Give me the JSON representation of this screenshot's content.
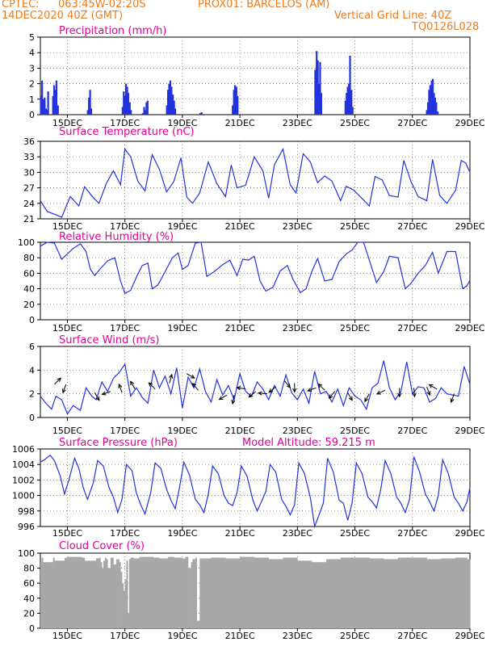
{
  "header": {
    "source": "CPTEC:",
    "coords": "063:45W-02:20S",
    "station": "PROX01: BARCELOS (AM)",
    "date": "14DEC2020 40Z (GMT)",
    "grid_note": "Vertical Grid Line: 40Z",
    "run_id": "TQ0126L028",
    "model_altitude": "Model Altitude: 59.215 m"
  },
  "colors": {
    "header": "#ee7a1c",
    "title": "#e00097",
    "line": "#2233dd",
    "cloud": "#a8a8a8"
  },
  "x_ticks": [
    "15DEC",
    "17DEC",
    "19DEC",
    "21DEC",
    "23DEC",
    "25DEC",
    "27DEC",
    "29DEC"
  ],
  "x_tick_days": [
    15,
    17,
    19,
    21,
    23,
    25,
    27,
    29
  ],
  "x_range": [
    14.06,
    29.0
  ],
  "chart_data": [
    {
      "id": "precip",
      "type": "bar",
      "title": "Precipitation (mm/h)",
      "ylim": [
        0,
        5
      ],
      "yticks": [
        0,
        1,
        2,
        3,
        4,
        5
      ],
      "x": [
        14.08,
        14.12,
        14.17,
        14.21,
        14.25,
        14.29,
        14.33,
        14.5,
        14.54,
        14.58,
        14.62,
        14.67,
        15.71,
        15.75,
        15.79,
        15.83,
        16.92,
        16.96,
        17,
        17.04,
        17.08,
        17.12,
        17.17,
        17.21,
        17.62,
        17.67,
        17.71,
        17.75,
        17.79,
        18.46,
        18.5,
        18.54,
        18.58,
        18.62,
        18.67,
        18.71,
        18.75,
        19.62,
        19.67,
        20.75,
        20.79,
        20.83,
        20.88,
        20.92,
        23.62,
        23.67,
        23.71,
        23.75,
        23.79,
        23.83,
        24.67,
        24.71,
        24.75,
        24.79,
        24.83,
        24.88,
        24.92,
        27.5,
        27.54,
        27.58,
        27.62,
        27.67,
        27.71,
        27.75,
        27.79,
        27.83,
        27.88
      ],
      "values": [
        1.2,
        2.2,
        1.0,
        1.1,
        0.4,
        0.3,
        1.5,
        1.2,
        1.9,
        1.6,
        2.2,
        0.6,
        0.3,
        1.1,
        1.6,
        0.4,
        0.5,
        1.5,
        1.2,
        2.0,
        1.8,
        1.4,
        0.8,
        0.3,
        0.1,
        0.5,
        0.3,
        0.8,
        0.9,
        0.6,
        1.6,
        2.0,
        2.2,
        1.8,
        1.3,
        0.9,
        0.4,
        0.1,
        0.15,
        0.6,
        1.6,
        1.9,
        1.8,
        1.2,
        2.9,
        4.1,
        3.5,
        2.0,
        3.4,
        1.4,
        0.9,
        1.4,
        1.8,
        2.0,
        3.8,
        1.6,
        0.5,
        0.3,
        0.8,
        1.6,
        1.9,
        2.2,
        2.3,
        1.4,
        1.1,
        0.8,
        0.2
      ]
    },
    {
      "id": "temp",
      "type": "line",
      "title": "Surface Temperature (nC)",
      "ylim": [
        21,
        36
      ],
      "yticks": [
        21,
        24,
        27,
        30,
        33,
        36
      ],
      "x": [
        14.06,
        14.3,
        14.6,
        14.8,
        15.1,
        15.4,
        15.6,
        15.9,
        16.1,
        16.35,
        16.6,
        16.85,
        17.0,
        17.2,
        17.45,
        17.7,
        17.95,
        18.2,
        18.45,
        18.7,
        18.95,
        19.15,
        19.35,
        19.6,
        19.9,
        20.2,
        20.5,
        20.7,
        20.9,
        21.2,
        21.5,
        21.8,
        22.0,
        22.2,
        22.5,
        22.75,
        22.95,
        23.2,
        23.45,
        23.7,
        23.95,
        24.2,
        24.5,
        24.7,
        24.95,
        25.2,
        25.5,
        25.7,
        25.95,
        26.2,
        26.5,
        26.7,
        26.95,
        27.2,
        27.5,
        27.7,
        27.95,
        28.2,
        28.5,
        28.7,
        28.85,
        29.0
      ],
      "values": [
        24.5,
        22.4,
        21.8,
        21.3,
        25.3,
        23.5,
        27.2,
        25.1,
        24.0,
        27.8,
        30.3,
        27.6,
        34.5,
        33.0,
        28.3,
        26.4,
        33.4,
        30.6,
        26.2,
        28.2,
        32.8,
        25.2,
        24.0,
        26.0,
        32.0,
        27.8,
        25.3,
        31.4,
        27.0,
        27.5,
        33.0,
        30.3,
        25.0,
        31.5,
        34.5,
        27.6,
        26.0,
        33.6,
        32.0,
        28.0,
        29.3,
        28.3,
        24.5,
        27.3,
        26.6,
        25.2,
        23.5,
        29.2,
        28.5,
        25.5,
        25.2,
        32.3,
        28.2,
        25.3,
        24.5,
        32.5,
        25.5,
        24.0,
        26.5,
        32.3,
        31.8,
        30.0
      ]
    },
    {
      "id": "rh",
      "type": "line",
      "title": "Relative Humidity (%)",
      "ylim": [
        0,
        100
      ],
      "yticks": [
        0,
        20,
        40,
        60,
        80,
        100
      ],
      "x": [
        14.06,
        14.3,
        14.55,
        14.8,
        15.0,
        15.2,
        15.45,
        15.65,
        15.8,
        15.95,
        16.15,
        16.4,
        16.65,
        16.85,
        17.0,
        17.2,
        17.4,
        17.6,
        17.8,
        17.95,
        18.15,
        18.4,
        18.65,
        18.85,
        19.0,
        19.2,
        19.45,
        19.65,
        19.85,
        20.1,
        20.4,
        20.65,
        20.9,
        21.1,
        21.3,
        21.5,
        21.7,
        21.9,
        22.15,
        22.4,
        22.65,
        22.85,
        23.1,
        23.3,
        23.5,
        23.7,
        23.95,
        24.2,
        24.45,
        24.7,
        24.9,
        25.1,
        25.3,
        25.5,
        25.75,
        26.0,
        26.2,
        26.5,
        26.75,
        26.95,
        27.2,
        27.45,
        27.7,
        27.9,
        28.2,
        28.5,
        28.75,
        28.9,
        29.0
      ],
      "values": [
        95,
        100,
        99,
        78,
        85,
        92,
        98,
        88,
        65,
        57,
        66,
        76,
        80,
        50,
        34,
        38,
        55,
        70,
        73,
        40,
        45,
        62,
        80,
        86,
        65,
        70,
        99,
        100,
        56,
        62,
        71,
        77,
        57,
        78,
        77,
        82,
        50,
        37,
        42,
        63,
        70,
        52,
        35,
        40,
        62,
        79,
        50,
        52,
        75,
        85,
        90,
        100,
        100,
        77,
        48,
        62,
        82,
        80,
        40,
        47,
        60,
        70,
        87,
        60,
        88,
        88,
        40,
        44,
        51
      ]
    },
    {
      "id": "wind",
      "type": "line",
      "title": "Surface Wind (m/s)",
      "ylim": [
        0,
        6
      ],
      "yticks": [
        0,
        2,
        4,
        6
      ],
      "x": [
        14.06,
        14.25,
        14.45,
        14.6,
        14.8,
        15.0,
        15.2,
        15.45,
        15.65,
        15.85,
        16.0,
        16.2,
        16.4,
        16.6,
        16.8,
        17.0,
        17.2,
        17.4,
        17.6,
        17.8,
        18.0,
        18.2,
        18.4,
        18.6,
        18.8,
        19.0,
        19.2,
        19.4,
        19.6,
        19.8,
        20.0,
        20.2,
        20.4,
        20.6,
        20.8,
        21.0,
        21.2,
        21.4,
        21.6,
        21.8,
        22.0,
        22.2,
        22.4,
        22.6,
        22.8,
        23.0,
        23.2,
        23.4,
        23.6,
        23.8,
        24.0,
        24.2,
        24.4,
        24.6,
        24.8,
        25.0,
        25.2,
        25.4,
        25.6,
        25.8,
        26.0,
        26.2,
        26.4,
        26.6,
        26.8,
        27.0,
        27.2,
        27.4,
        27.6,
        27.8,
        28.0,
        28.2,
        28.4,
        28.6,
        28.8,
        29.0
      ],
      "values": [
        1.8,
        1.2,
        0.7,
        1.8,
        1.5,
        0.3,
        1.0,
        0.6,
        2.5,
        1.8,
        1.5,
        3.0,
        2.2,
        3.3,
        3.8,
        4.5,
        1.8,
        2.5,
        1.7,
        1.2,
        4.0,
        2.5,
        3.5,
        2.0,
        4.2,
        0.8,
        3.4,
        2.5,
        4.1,
        2.2,
        1.3,
        3.2,
        1.9,
        2.7,
        1.5,
        3.7,
        2.2,
        1.8,
        3.0,
        2.4,
        1.5,
        2.7,
        1.8,
        3.6,
        2.1,
        1.5,
        2.4,
        1.2,
        3.9,
        2.0,
        2.2,
        1.3,
        2.4,
        1.0,
        2.5,
        1.8,
        1.5,
        0.7,
        2.5,
        2.9,
        4.8,
        2.5,
        1.5,
        2.2,
        4.7,
        2.0,
        2.6,
        2.5,
        1.3,
        1.6,
        2.5,
        2.0,
        1.9,
        1.8,
        4.3,
        2.8
      ],
      "arrows": [
        {
          "x": 14.55,
          "y": 2.8,
          "dir": 45
        },
        {
          "x": 14.95,
          "y": 2.8,
          "dir": 250
        },
        {
          "x": 15.95,
          "y": 2.1,
          "dir": 300
        },
        {
          "x": 16.5,
          "y": 2.2,
          "dir": 200
        },
        {
          "x": 16.9,
          "y": 2.1,
          "dir": 110
        },
        {
          "x": 17.35,
          "y": 2.4,
          "dir": 120
        },
        {
          "x": 18.05,
          "y": 2.4,
          "dir": 135
        },
        {
          "x": 18.55,
          "y": 2.9,
          "dir": 75
        },
        {
          "x": 19.15,
          "y": 3.7,
          "dir": 330
        },
        {
          "x": 19.55,
          "y": 2.3,
          "dir": 130
        },
        {
          "x": 20.55,
          "y": 1.9,
          "dir": 210
        },
        {
          "x": 20.8,
          "y": 1.9,
          "dir": 260
        },
        {
          "x": 21.2,
          "y": 2.4,
          "dir": 170
        },
        {
          "x": 21.55,
          "y": 2.2,
          "dir": 220
        },
        {
          "x": 21.95,
          "y": 2.0,
          "dir": 175
        },
        {
          "x": 22.25,
          "y": 2.6,
          "dir": 220
        },
        {
          "x": 22.55,
          "y": 3.1,
          "dir": 310
        },
        {
          "x": 22.9,
          "y": 2.9,
          "dir": 270
        },
        {
          "x": 23.65,
          "y": 2.5,
          "dir": 200
        },
        {
          "x": 23.95,
          "y": 2.3,
          "dir": 135
        },
        {
          "x": 24.3,
          "y": 2.2,
          "dir": 230
        },
        {
          "x": 24.75,
          "y": 2.1,
          "dir": 300
        },
        {
          "x": 25.5,
          "y": 2.0,
          "dir": 240
        },
        {
          "x": 26.05,
          "y": 2.3,
          "dir": 205
        },
        {
          "x": 26.55,
          "y": 2.5,
          "dir": 270
        },
        {
          "x": 27.05,
          "y": 2.5,
          "dir": 275
        },
        {
          "x": 27.5,
          "y": 2.6,
          "dir": 290
        },
        {
          "x": 27.85,
          "y": 2.4,
          "dir": 150
        },
        {
          "x": 28.45,
          "y": 2.0,
          "dir": 250
        }
      ]
    },
    {
      "id": "pres",
      "type": "line",
      "title": "Surface Pressure (hPa)",
      "ylim": [
        996,
        1006
      ],
      "yticks": [
        996,
        998,
        1000,
        1002,
        1004,
        1006
      ],
      "x": [
        14.06,
        14.2,
        14.4,
        14.55,
        14.75,
        14.9,
        15.05,
        15.25,
        15.4,
        15.55,
        15.7,
        15.9,
        16.05,
        16.25,
        16.45,
        16.6,
        16.75,
        16.9,
        17.05,
        17.25,
        17.4,
        17.55,
        17.7,
        17.9,
        18.05,
        18.25,
        18.45,
        18.6,
        18.75,
        18.9,
        19.05,
        19.25,
        19.45,
        19.6,
        19.75,
        19.9,
        20.05,
        20.25,
        20.45,
        20.6,
        20.75,
        20.9,
        21.05,
        21.25,
        21.45,
        21.6,
        21.75,
        21.9,
        22.05,
        22.25,
        22.45,
        22.6,
        22.75,
        22.9,
        23.05,
        23.25,
        23.45,
        23.6,
        23.75,
        23.9,
        24.05,
        24.25,
        24.45,
        24.6,
        24.75,
        24.9,
        25.05,
        25.25,
        25.45,
        25.6,
        25.75,
        25.9,
        26.05,
        26.25,
        26.45,
        26.6,
        26.75,
        26.9,
        27.05,
        27.25,
        27.45,
        27.6,
        27.75,
        27.9,
        28.05,
        28.25,
        28.45,
        28.6,
        28.75,
        28.9,
        29.0
      ],
      "values": [
        1004.3,
        1004.6,
        1005.2,
        1004.5,
        1002.5,
        1000.2,
        1002.0,
        1004.8,
        1003.5,
        1001.0,
        999.5,
        1001.6,
        1004.5,
        1003.8,
        1001.0,
        999.8,
        997.8,
        999.5,
        1004.0,
        1003.2,
        1000.3,
        998.8,
        997.6,
        1000.4,
        1004.2,
        1003.5,
        1000.8,
        999.4,
        998.3,
        1001.0,
        1004.3,
        1002.6,
        999.5,
        998.8,
        997.8,
        1000.2,
        1003.8,
        1002.8,
        1000.0,
        999.0,
        998.7,
        1000.4,
        1003.8,
        1002.5,
        999.4,
        998.0,
        999.2,
        1000.5,
        1004.0,
        1003.0,
        999.5,
        998.6,
        997.5,
        998.8,
        1004.2,
        1002.8,
        999.7,
        996.0,
        997.5,
        999.0,
        1004.8,
        1003.0,
        999.4,
        999.0,
        996.8,
        999.0,
        1004.2,
        1002.8,
        999.8,
        999.2,
        998.4,
        1000.8,
        1004.5,
        1002.8,
        999.8,
        999.0,
        997.8,
        999.5,
        1005.0,
        1003.0,
        1000.2,
        999.2,
        998.0,
        1000.0,
        1004.6,
        1002.8,
        999.8,
        999.0,
        998.0,
        999.2,
        1001.0
      ]
    },
    {
      "id": "cloud",
      "type": "area",
      "title": "Cloud Cover (%)",
      "ylim": [
        0,
        100
      ],
      "yticks": [
        0,
        20,
        40,
        60,
        80,
        100
      ],
      "x": [
        14.06,
        14.1,
        14.15,
        14.5,
        14.55,
        14.9,
        15.0,
        15.5,
        15.6,
        16.0,
        16.1,
        16.15,
        16.2,
        16.25,
        16.3,
        16.35,
        16.4,
        16.5,
        16.6,
        16.7,
        16.8,
        16.85,
        16.9,
        16.95,
        17.0,
        17.05,
        17.1,
        17.15,
        17.2,
        17.3,
        17.5,
        18.0,
        18.2,
        18.5,
        18.7,
        19.0,
        19.1,
        19.2,
        19.3,
        19.35,
        19.45,
        19.5,
        19.6,
        20.0,
        20.5,
        21.0,
        21.5,
        22.0,
        22.5,
        23.0,
        23.5,
        24.0,
        24.5,
        25.0,
        25.5,
        26.0,
        26.5,
        27.0,
        27.5,
        28.0,
        28.5,
        28.9,
        29.0
      ],
      "values": [
        88,
        94,
        88,
        94,
        90,
        94,
        95,
        94,
        90,
        93,
        94,
        88,
        80,
        90,
        94,
        92,
        80,
        94,
        85,
        92,
        88,
        75,
        60,
        50,
        65,
        90,
        20,
        92,
        94,
        93,
        95,
        94,
        93,
        95,
        94,
        93,
        95,
        80,
        88,
        92,
        94,
        10,
        93,
        94,
        93,
        95,
        94,
        92,
        94,
        90,
        88,
        92,
        94,
        94,
        93,
        92,
        94,
        94,
        92,
        93,
        94,
        92,
        90
      ]
    }
  ]
}
